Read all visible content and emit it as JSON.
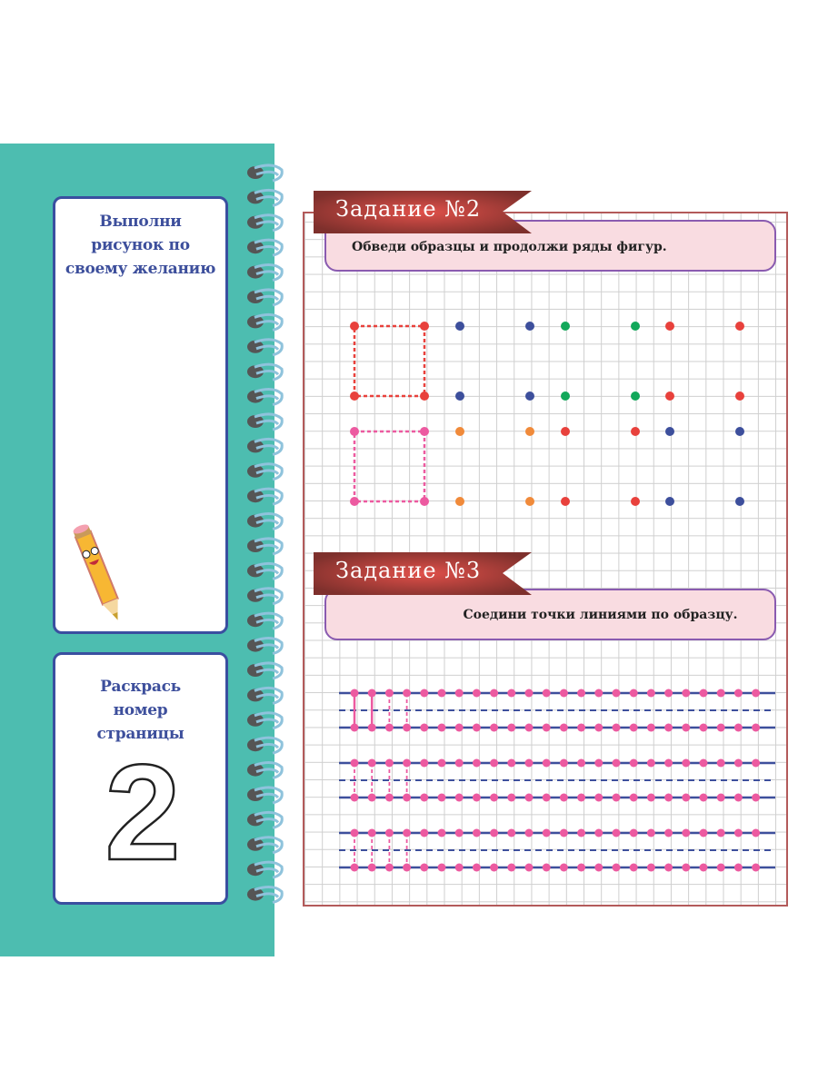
{
  "left_panel": {
    "draw_box": {
      "title": "Выполни рисунок по своему желанию",
      "icon": "pencil-character-icon"
    },
    "page_number_box": {
      "title": "Раскрась номер страницы",
      "number": "2"
    }
  },
  "task2": {
    "banner": "Задание №2",
    "instruction": "Обведи образцы и продолжи ряды фигур.",
    "dot_rows": [
      [
        "red",
        "red",
        "blue",
        "blue",
        "green",
        "green",
        "red",
        "red"
      ],
      [
        "red",
        "red",
        "blue",
        "blue",
        "green",
        "green",
        "red",
        "red"
      ],
      [
        "pink",
        "pink",
        "orange",
        "orange",
        "red",
        "red",
        "blue",
        "blue"
      ],
      [
        "pink",
        "pink",
        "orange",
        "orange",
        "red",
        "red",
        "blue",
        "blue"
      ]
    ]
  },
  "task3": {
    "banner": "Задание №3",
    "instruction": "Соедини точки линиями по образцу."
  },
  "colors": {
    "teal": "#4dbdb0",
    "red": "#e8413c",
    "blue": "#3d4f9c",
    "green": "#12a85a",
    "orange": "#f08a3a",
    "pink": "#ec5aa0",
    "banner": "#9a3c38"
  }
}
